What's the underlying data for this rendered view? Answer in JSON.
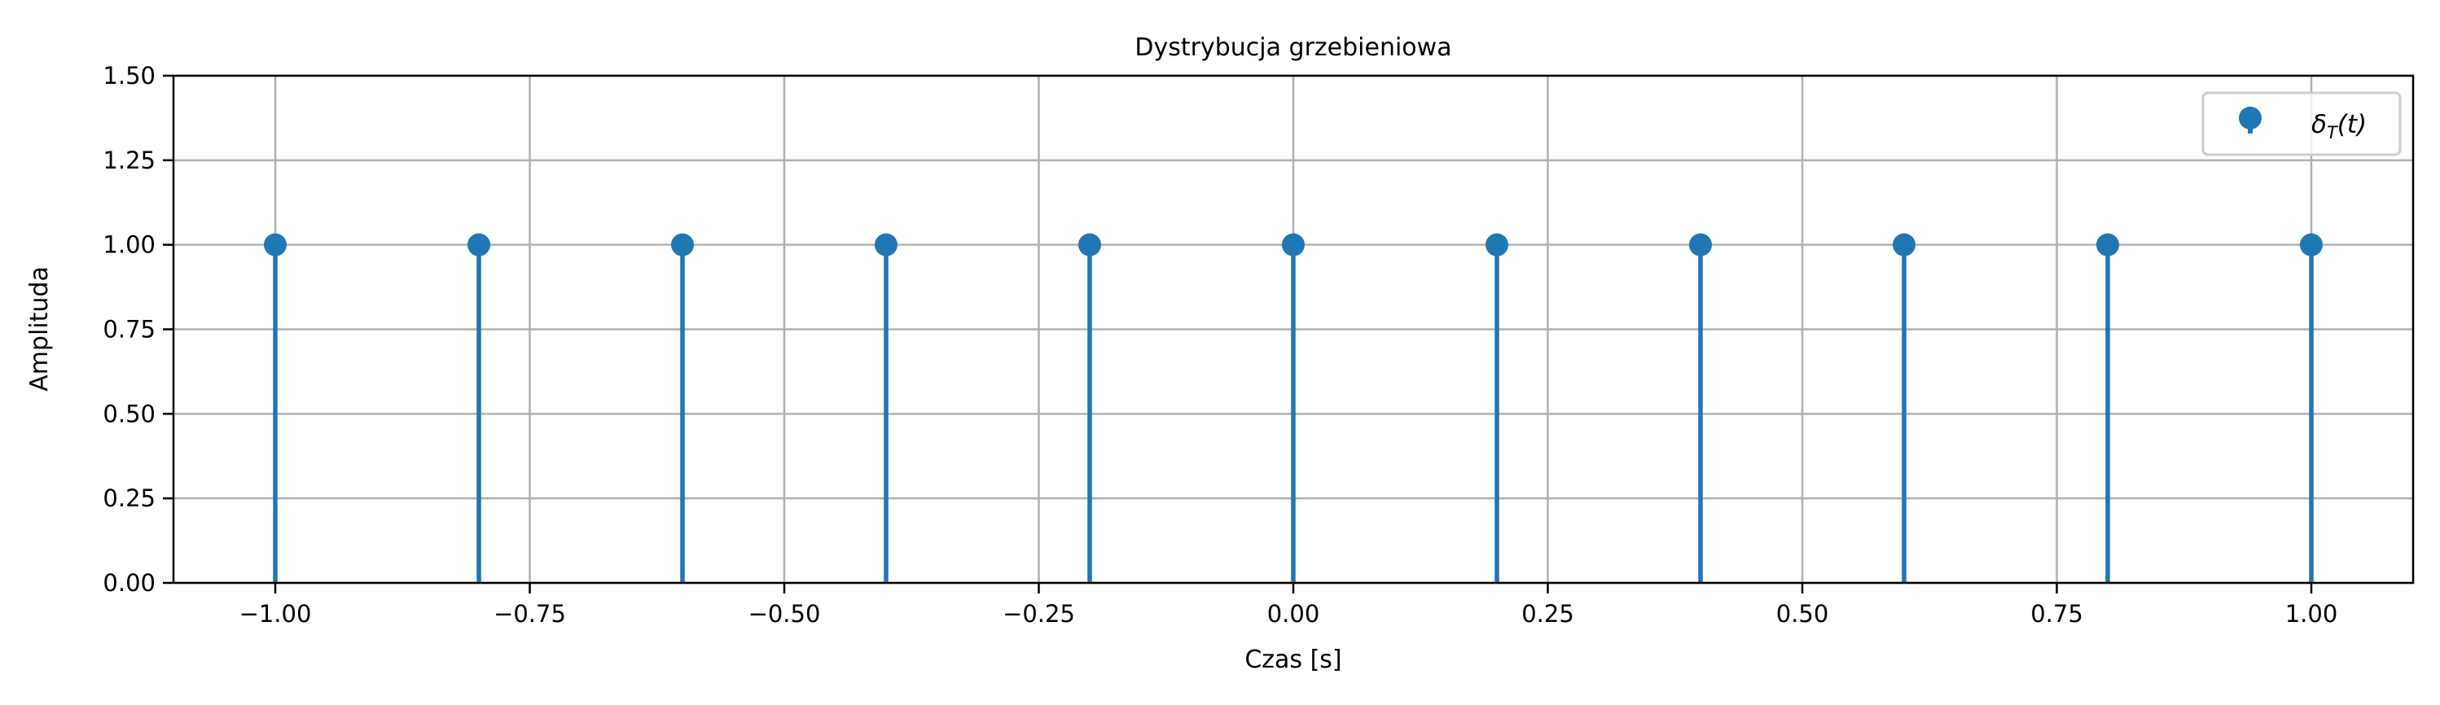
{
  "chart_data": {
    "type": "stem",
    "title": "Dystrybucja grzebieniowa",
    "xlabel": "Czas [s]",
    "ylabel": "Amplituda",
    "xlim": [
      -1.1,
      1.1
    ],
    "ylim": [
      0,
      1.5
    ],
    "grid": true,
    "legend_position": "top-right",
    "xticks": [
      "−1.00",
      "−0.75",
      "−0.50",
      "−0.25",
      "0.00",
      "0.25",
      "0.50",
      "0.75",
      "1.00"
    ],
    "xtick_values": [
      -1,
      -0.75,
      -0.5,
      -0.25,
      0,
      0.25,
      0.5,
      0.75,
      1
    ],
    "yticks": [
      "0.00",
      "0.25",
      "0.50",
      "0.75",
      "1.00",
      "1.25",
      "1.50"
    ],
    "ytick_values": [
      0,
      0.25,
      0.5,
      0.75,
      1,
      1.25,
      1.5
    ],
    "series": [
      {
        "name": "δ_T(t)",
        "color": "#1f77b4",
        "x": [
          -1.0,
          -0.8,
          -0.6,
          -0.4,
          -0.2,
          0.0,
          0.2,
          0.4,
          0.6,
          0.8,
          1.0
        ],
        "y": [
          1,
          1,
          1,
          1,
          1,
          1,
          1,
          1,
          1,
          1,
          1
        ]
      }
    ]
  }
}
